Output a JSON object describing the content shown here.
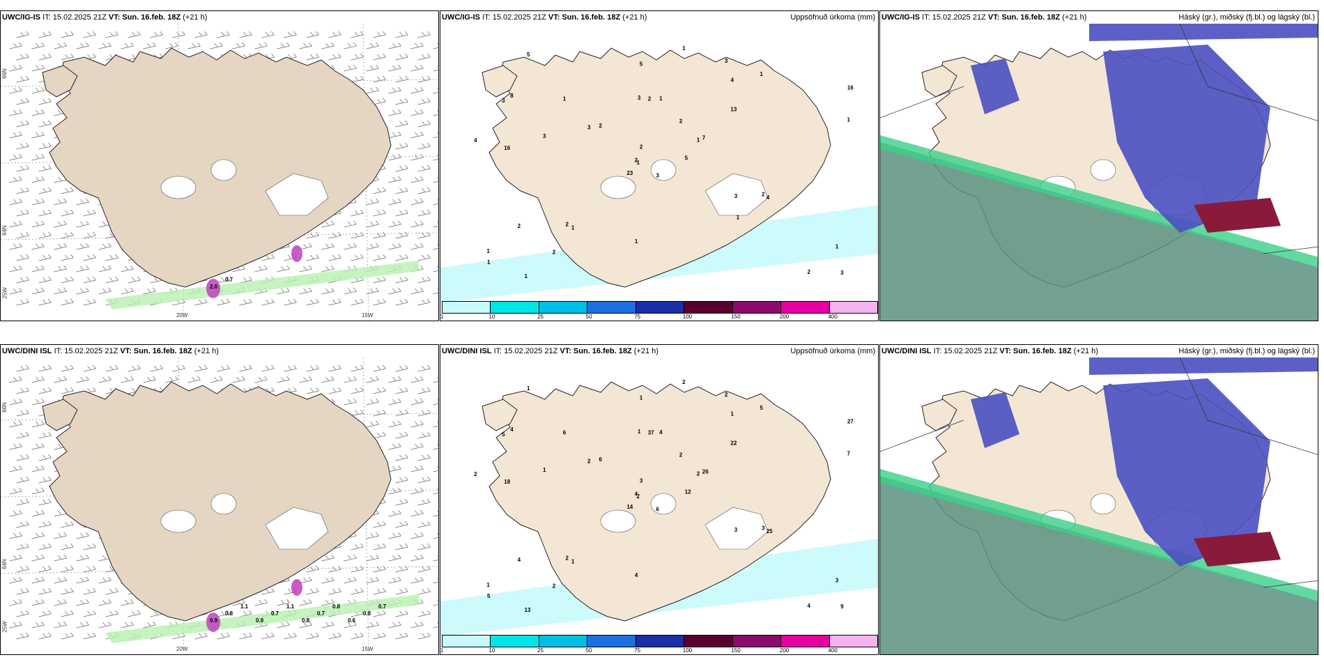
{
  "panels": [
    {
      "id": "p1",
      "model": "UWC/IG-IS",
      "it": "IT: 15.02.2025 21Z",
      "vt": "VT: Sun. 16.feb. 18Z",
      "lead": "(+21 h)",
      "title": "",
      "type": "wind"
    },
    {
      "id": "p2",
      "model": "UWC/IG-IS",
      "it": "IT: 15.02.2025 21Z",
      "vt": "VT: Sun. 16.feb. 18Z",
      "lead": "(+21 h)",
      "title": "Uppsöfnuð úrkoma (mm)",
      "type": "precip"
    },
    {
      "id": "p3",
      "model": "UWC/IG-IS",
      "it": "IT: 15.02.2025 21Z",
      "vt": "VT: Sun. 16.feb. 18Z",
      "lead": "(+21 h)",
      "title": "Háský (gr.), miðský (fj.bl.) og lágský (bl.)",
      "type": "cloud"
    },
    {
      "id": "p4",
      "model": "UWC/DINI ISL",
      "it": "IT: 15.02.2025 21Z",
      "vt": "VT: Sun. 16.feb. 18Z",
      "lead": "(+21 h)",
      "title": "",
      "type": "wind"
    },
    {
      "id": "p5",
      "model": "UWC/DINI ISL",
      "it": "IT: 15.02.2025 21Z",
      "vt": "VT: Sun. 16.feb. 18Z",
      "lead": "(+21 h)",
      "title": "Uppsöfnuð úrkoma (mm)",
      "type": "precip"
    },
    {
      "id": "p6",
      "model": "UWC/DINI ISL",
      "it": "IT: 15.02.2025 21Z",
      "vt": "VT: Sun. 16.feb. 18Z",
      "lead": "(+21 h)",
      "title": "Háský (gr.), miðský (fj.bl.) og lágský (bl.)",
      "type": "cloud"
    }
  ],
  "colorbar": {
    "labels": [
      "1",
      "10",
      "25",
      "50",
      "75",
      "100",
      "150",
      "200",
      "400"
    ],
    "colors": [
      "#c8fafa",
      "#00e6e6",
      "#00bfe6",
      "#1f6fe0",
      "#1a2ea8",
      "#5a0030",
      "#8c0a6e",
      "#e600a0",
      "#f5b4f0"
    ]
  },
  "axes": {
    "lat_top": "66N",
    "lat_mid": "64N",
    "lat_bot": "25W",
    "lon_left": "20W",
    "lon_right": "15W"
  },
  "precip_labels_top": [
    "3",
    "3",
    "1",
    "1",
    "1",
    "1",
    "3",
    "1",
    "4",
    "5",
    "5",
    "3",
    "16",
    "16",
    "23",
    "13",
    "1",
    "3",
    "2",
    "2",
    "2",
    "1",
    "2",
    "2",
    "7",
    "4",
    "8",
    "5",
    "4",
    "3",
    "1",
    "2",
    "1",
    "2",
    "1",
    "1",
    "2",
    "2",
    "1",
    "2",
    "1",
    "3",
    "3",
    "1"
  ],
  "precip_labels_bot": [
    "6",
    "5",
    "2",
    "1",
    "2",
    "1",
    "2",
    "4",
    "1",
    "12",
    "1",
    "9",
    "18",
    "27",
    "14",
    "22",
    "13",
    "1",
    "2",
    "4",
    "6",
    "5",
    "2",
    "37",
    "26",
    "25",
    "4",
    "1",
    "2",
    "3",
    "7",
    "4",
    "4",
    "3",
    "6",
    "5",
    "2",
    "4",
    "3",
    "3",
    "2",
    "2",
    "1"
  ],
  "wind_labels_top": [
    "2.0",
    "0.7"
  ],
  "wind_labels_bot": [
    "0.9",
    "0.8",
    "1.1",
    "0.9",
    "0.7",
    "1.1",
    "0.8",
    "0.7",
    "0.8",
    "0.6",
    "0.8",
    "0.7"
  ],
  "colors": {
    "land": "#f3e6d4",
    "landWind": "#e5d5c3",
    "ocean": "#ffffff",
    "cyanLight": "#c8fafa",
    "cloudHigh": "#5a9080",
    "cloudMid": "#4a4fc0",
    "cloudLow": "#8a1a3a",
    "greenLight": "#b8f0b0",
    "magenta": "#c040c0"
  }
}
